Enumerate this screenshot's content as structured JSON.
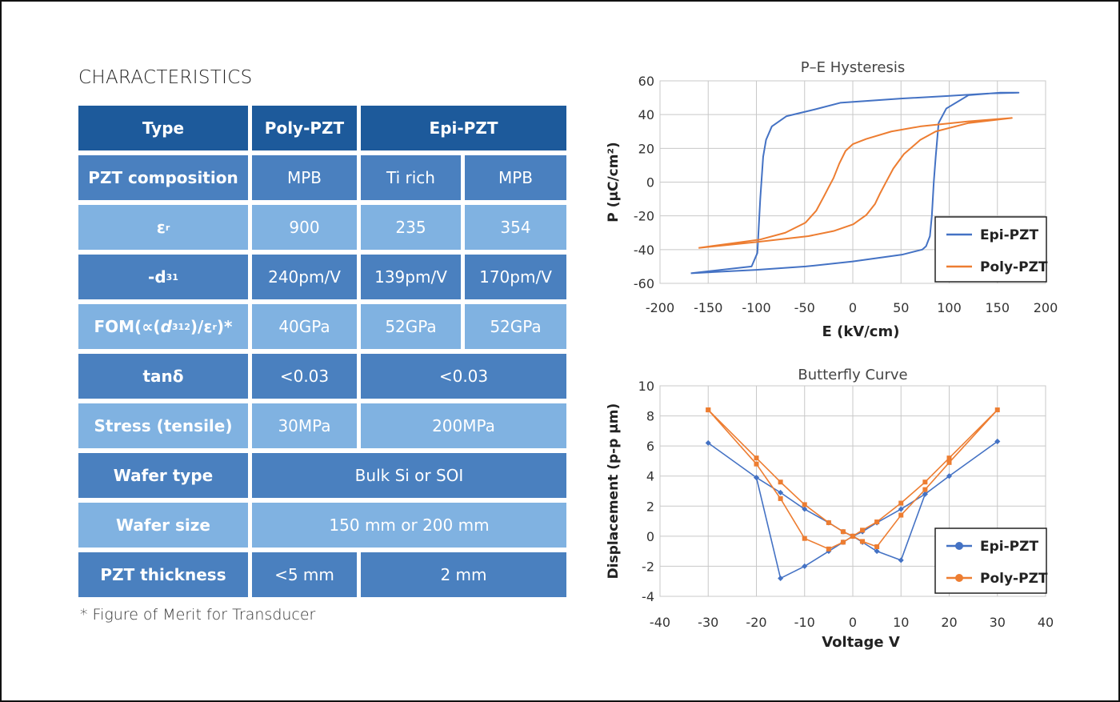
{
  "title": "CHARACTERISTICS",
  "footnote": "* Figure of Merit for Transducer",
  "colors": {
    "dark": "#1d5a9b",
    "mid": "#4a80bf",
    "light": "#80b2e1",
    "epi": "#4472c4",
    "poly": "#ed7d31"
  },
  "table": {
    "rows": [
      {
        "shade": "dark",
        "label": [
          {
            "t": "Type"
          }
        ],
        "cells": [
          {
            "t": "Poly-PZT",
            "span": 1,
            "bold": true
          },
          {
            "t": "Epi-PZT",
            "span": 2,
            "bold": true
          }
        ]
      },
      {
        "shade": "mid",
        "label": [
          {
            "t": "PZT composition"
          }
        ],
        "cells": [
          {
            "t": "MPB",
            "span": 1
          },
          {
            "t": "Ti rich",
            "span": 1
          },
          {
            "t": "MPB",
            "span": 1
          }
        ]
      },
      {
        "shade": "light",
        "label": [
          {
            "t": "ε"
          },
          {
            "t": "r",
            "k": "sub"
          }
        ],
        "cells": [
          {
            "t": "900",
            "span": 1
          },
          {
            "t": "235",
            "span": 1
          },
          {
            "t": "354",
            "span": 1
          }
        ]
      },
      {
        "shade": "mid",
        "label": [
          {
            "t": "-d"
          },
          {
            "t": "31",
            "k": "sub"
          }
        ],
        "cells": [
          {
            "t": "240pm/V",
            "span": 1
          },
          {
            "t": "139pm/V",
            "span": 1
          },
          {
            "t": "170pm/V",
            "span": 1
          }
        ]
      },
      {
        "shade": "light",
        "label": [
          {
            "t": "FOM(∝("
          },
          {
            "t": "d",
            "k": "it"
          },
          {
            "t": "31",
            "k": "sub"
          },
          {
            "t": "2",
            "k": "sup"
          },
          {
            "t": ")/ε"
          },
          {
            "t": "r",
            "k": "sub"
          },
          {
            "t": " )*"
          }
        ],
        "cells": [
          {
            "t": "40GPa",
            "span": 1
          },
          {
            "t": "52GPa",
            "span": 1
          },
          {
            "t": "52GPa",
            "span": 1
          }
        ]
      },
      {
        "shade": "mid",
        "label": [
          {
            "t": "tanδ"
          }
        ],
        "cells": [
          {
            "t": "<0.03",
            "span": 1
          },
          {
            "t": "<0.03",
            "span": 2
          }
        ]
      },
      {
        "shade": "light",
        "label": [
          {
            "t": "Stress (tensile)"
          }
        ],
        "cells": [
          {
            "t": "30MPa",
            "span": 1
          },
          {
            "t": "200MPa",
            "span": 2
          }
        ]
      },
      {
        "shade": "mid",
        "label": [
          {
            "t": "Wafer type"
          }
        ],
        "cells": [
          {
            "t": "Bulk Si or SOI",
            "span": 3
          }
        ]
      },
      {
        "shade": "light",
        "label": [
          {
            "t": "Wafer size"
          }
        ],
        "cells": [
          {
            "t": "150 mm or 200 mm",
            "span": 3
          }
        ]
      },
      {
        "shade": "mid",
        "label": [
          {
            "t": "PZT thickness"
          }
        ],
        "cells": [
          {
            "t": "<5 mm",
            "span": 1
          },
          {
            "t": "2 mm",
            "span": 2
          }
        ]
      }
    ]
  },
  "chart_data": [
    {
      "type": "line",
      "title": "P–E Hysteresis",
      "xlabel": "E (kV/cm)",
      "ylabel": "P (μC/cm²)",
      "xlim": [
        -200,
        200
      ],
      "ylim": [
        -60,
        60
      ],
      "xticks": [
        -200,
        -150,
        -100,
        -50,
        0,
        50,
        100,
        150,
        200
      ],
      "yticks": [
        60,
        40,
        20,
        0,
        -20,
        -40,
        -60
      ],
      "grid": true,
      "legend": "bottom-right",
      "markers": false,
      "series": [
        {
          "name": "Epi-PZT",
          "color": "#4472c4",
          "points": [
            [
              -168,
              -54
            ],
            [
              -105,
              -50
            ],
            [
              -99,
              -42
            ],
            [
              -96,
              -10
            ],
            [
              -93,
              15
            ],
            [
              -90,
              25
            ],
            [
              -84,
              33
            ],
            [
              -69,
              39
            ],
            [
              -40,
              43
            ],
            [
              -13,
              47
            ],
            [
              50,
              49.5
            ],
            [
              97,
              51
            ],
            [
              140,
              52.5
            ],
            [
              172,
              53
            ],
            [
              153,
              53
            ],
            [
              120,
              51.5
            ],
            [
              97,
              43.6
            ],
            [
              89,
              35
            ],
            [
              86,
              15
            ],
            [
              84,
              0
            ],
            [
              82,
              -20
            ],
            [
              80,
              -32
            ],
            [
              76,
              -38
            ],
            [
              72,
              -40
            ],
            [
              51,
              -43
            ],
            [
              0,
              -47
            ],
            [
              -49,
              -50
            ],
            [
              -100,
              -52
            ],
            [
              -168,
              -54
            ]
          ]
        },
        {
          "name": "Poly-PZT",
          "color": "#ed7d31",
          "points": [
            [
              -160,
              -39
            ],
            [
              -96,
              -34
            ],
            [
              -70,
              -30
            ],
            [
              -49,
              -24
            ],
            [
              -38,
              -17
            ],
            [
              -30,
              -8.5
            ],
            [
              -25,
              -3
            ],
            [
              -20,
              2.4
            ],
            [
              -14,
              11
            ],
            [
              -7.5,
              18.5
            ],
            [
              0,
              22.5
            ],
            [
              14,
              25.6
            ],
            [
              40,
              30
            ],
            [
              70,
              33
            ],
            [
              120,
              36
            ],
            [
              165,
              38
            ],
            [
              120,
              35
            ],
            [
              86,
              30
            ],
            [
              70,
              25
            ],
            [
              53,
              16.6
            ],
            [
              42,
              8
            ],
            [
              34,
              -0.5
            ],
            [
              28,
              -7
            ],
            [
              23,
              -13
            ],
            [
              14,
              -19.5
            ],
            [
              0.5,
              -25
            ],
            [
              -20,
              -29
            ],
            [
              -46,
              -32
            ],
            [
              -100,
              -35.5
            ],
            [
              -160,
              -39
            ]
          ]
        }
      ]
    },
    {
      "type": "line",
      "title": "Butterfly Curve",
      "xlabel": "Voltage V",
      "ylabel": "Displacement (p-p μm)",
      "xlim": [
        -40,
        40
      ],
      "ylim": [
        -4,
        10
      ],
      "xticks": [
        -40,
        -30,
        -20,
        -10,
        0,
        10,
        20,
        30,
        40
      ],
      "yticks": [
        10,
        8,
        6,
        4,
        2,
        0,
        -2,
        -4
      ],
      "grid": true,
      "legend": "bottom-right",
      "markers": true,
      "series": [
        {
          "name": "Epi-PZT",
          "color": "#4472c4",
          "points": [
            [
              30,
              6.3
            ],
            [
              20,
              4.0
            ],
            [
              15,
              2.8
            ],
            [
              10,
              1.8
            ],
            [
              5,
              0.9
            ],
            [
              2,
              0.3
            ],
            [
              0,
              0
            ],
            [
              -2,
              -0.4
            ],
            [
              -5,
              -1.0
            ],
            [
              -10,
              -2.0
            ],
            [
              -15,
              -2.8
            ],
            [
              -20,
              3.9
            ],
            [
              -30,
              6.2
            ],
            [
              -20,
              3.9
            ],
            [
              -15,
              2.9
            ],
            [
              -10,
              1.8
            ],
            [
              -5,
              0.9
            ],
            [
              -2,
              0.3
            ],
            [
              0,
              0
            ],
            [
              2,
              -0.4
            ],
            [
              5,
              -1.0
            ],
            [
              10,
              -1.6
            ],
            [
              15,
              2.8
            ],
            [
              20,
              4.0
            ],
            [
              30,
              6.3
            ]
          ]
        },
        {
          "name": "Poly-PZT",
          "color": "#ed7d31",
          "points": [
            [
              -30,
              8.4
            ],
            [
              -20,
              5.2
            ],
            [
              -15,
              3.6
            ],
            [
              -10,
              2.1
            ],
            [
              -5,
              0.9
            ],
            [
              -2,
              0.3
            ],
            [
              0,
              0
            ],
            [
              2,
              -0.35
            ],
            [
              5,
              -0.7
            ],
            [
              10,
              1.4
            ],
            [
              15,
              3.1
            ],
            [
              20,
              4.9
            ],
            [
              30,
              8.4
            ],
            [
              20,
              5.2
            ],
            [
              15,
              3.6
            ],
            [
              10,
              2.2
            ],
            [
              5,
              0.95
            ],
            [
              2,
              0.4
            ],
            [
              0,
              0
            ],
            [
              -2,
              -0.4
            ],
            [
              -5,
              -0.85
            ],
            [
              -10,
              -0.15
            ],
            [
              -15,
              2.5
            ],
            [
              -20,
              4.8
            ],
            [
              -30,
              8.4
            ]
          ]
        }
      ]
    }
  ]
}
